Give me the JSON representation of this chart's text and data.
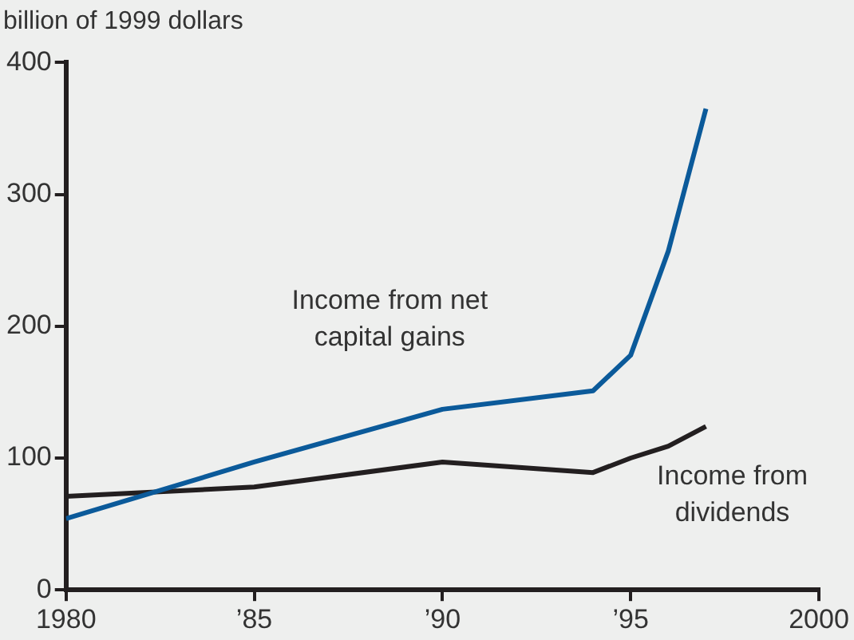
{
  "chart_data": {
    "type": "line",
    "ylabel": "billion of 1999 dollars",
    "x": [
      1980,
      1985,
      1990,
      1994,
      1995,
      1996,
      1997
    ],
    "series": [
      {
        "name": "Income from net capital gains",
        "color": "#0b5a9a",
        "values": [
          54,
          97,
          137,
          151,
          178,
          257,
          365
        ]
      },
      {
        "name": "Income from dividends",
        "color": "#231f20",
        "values": [
          71,
          78,
          97,
          89,
          100,
          109,
          124
        ]
      }
    ],
    "xlim": [
      1980,
      2000
    ],
    "xticks": [
      1980,
      {
        "value": 1985,
        "label": "’85"
      },
      {
        "value": 1990,
        "label": "’90"
      },
      {
        "value": 1995,
        "label": "’95"
      },
      2000
    ],
    "ylim": [
      0,
      400
    ],
    "yticks": [
      0,
      100,
      200,
      300,
      400
    ],
    "grid": false,
    "legend": false,
    "marker": "none",
    "line_style": "solid"
  }
}
